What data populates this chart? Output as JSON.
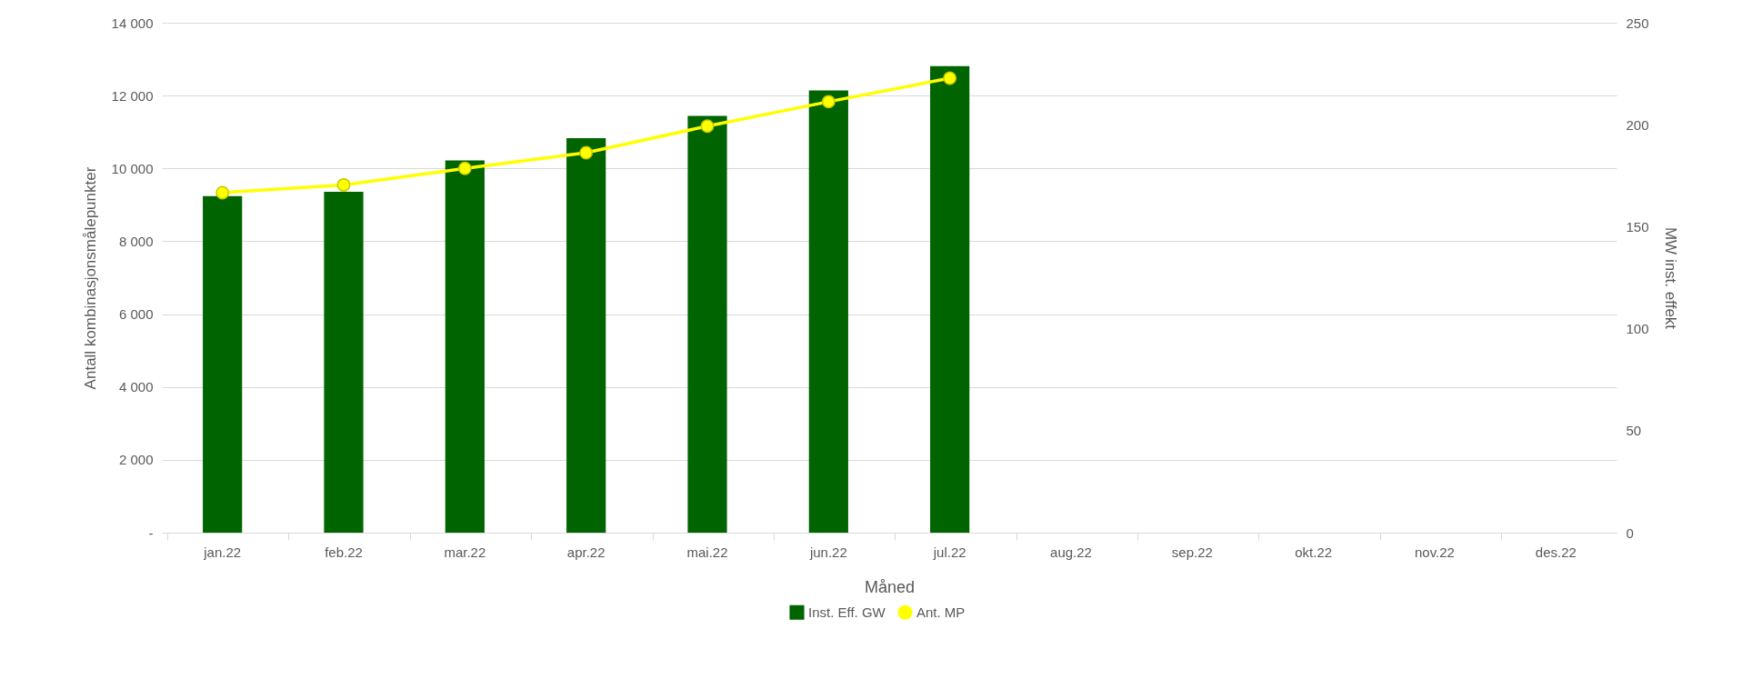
{
  "chart_data": {
    "type": "bar",
    "xlabel": "Måned",
    "ylabel": "Antall kombinasjonsmålepunkter",
    "y2label": "MW inst. effekt",
    "categories": [
      "jan.22",
      "feb.22",
      "mar.22",
      "apr.22",
      "mai.22",
      "jun.22",
      "jul.22",
      "aug.22",
      "sep.22",
      "okt.22",
      "nov.22",
      "des.22"
    ],
    "series": [
      {
        "name": "Inst. Eff. GW",
        "color": "#006400",
        "values": [
          9240,
          9360,
          10220,
          10830,
          11440,
          12140,
          12810,
          null,
          null,
          null,
          null,
          null
        ]
      },
      {
        "name": "Ant. MP",
        "type": "line",
        "axis": "y2",
        "color": "#ffff00",
        "marker": "circle",
        "values": [
          166.7,
          170.5,
          178.6,
          186.3,
          199.3,
          211.3,
          222.8,
          null,
          null,
          null,
          null,
          null
        ]
      }
    ],
    "ylim": [
      0,
      14000
    ],
    "yticks": [
      {
        "value": 0,
        "label": "-"
      },
      {
        "value": 2000,
        "label": "2 000"
      },
      {
        "value": 4000,
        "label": "4 000"
      },
      {
        "value": 6000,
        "label": "6 000"
      },
      {
        "value": 8000,
        "label": "8 000"
      },
      {
        "value": 10000,
        "label": "10 000"
      },
      {
        "value": 12000,
        "label": "12 000"
      },
      {
        "value": 14000,
        "label": "14 000"
      }
    ],
    "y2lim": [
      0,
      250
    ],
    "y2ticks": [
      0,
      50,
      100,
      150,
      200,
      250
    ],
    "grid": "y",
    "legend": "bottom"
  }
}
